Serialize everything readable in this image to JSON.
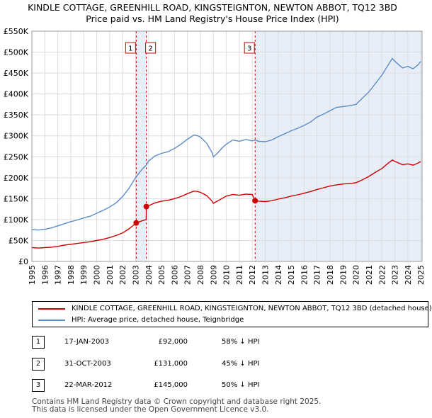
{
  "header": {
    "title_line1": "KINDLE COTTAGE, GREENHILL ROAD, KINGSTEIGNTON, NEWTON ABBOT, TQ12 3BD",
    "title_line2": "Price paid vs. HM Land Registry's House Price Index (HPI)"
  },
  "colors": {
    "red": "#cc0000",
    "blue": "#5b8cc8",
    "shade": "#e8eef8",
    "grid": "#dddddd"
  },
  "chart_data": {
    "type": "line",
    "title": "Price paid vs. HM Land Registry's House Price Index (HPI)",
    "xlim": [
      1995,
      2025.1
    ],
    "ylim": [
      0,
      550000
    ],
    "y_ticks": [
      0,
      50000,
      100000,
      150000,
      200000,
      250000,
      300000,
      350000,
      400000,
      450000,
      500000,
      550000
    ],
    "y_tick_labels": [
      "£0",
      "£50K",
      "£100K",
      "£150K",
      "£200K",
      "£250K",
      "£300K",
      "£350K",
      "£400K",
      "£450K",
      "£500K",
      "£550K"
    ],
    "x_ticks": [
      1995,
      1996,
      1997,
      1998,
      1999,
      2000,
      2001,
      2002,
      2003,
      2004,
      2005,
      2006,
      2007,
      2008,
      2009,
      2010,
      2011,
      2012,
      2013,
      2014,
      2015,
      2016,
      2017,
      2018,
      2019,
      2020,
      2021,
      2022,
      2023,
      2024,
      2025
    ],
    "shaded_ranges": [
      [
        2003.05,
        2003.83
      ],
      [
        2012.22,
        2025.1
      ]
    ],
    "series": [
      {
        "name": "HPI: Average price, detached house, Teignbridge",
        "color": "#5b8cc8",
        "points": [
          [
            1995.0,
            76000
          ],
          [
            1995.5,
            75000
          ],
          [
            1996.0,
            77000
          ],
          [
            1996.5,
            80000
          ],
          [
            1997.0,
            85000
          ],
          [
            1997.5,
            90000
          ],
          [
            1998.0,
            95000
          ],
          [
            1998.5,
            99000
          ],
          [
            1999.0,
            104000
          ],
          [
            1999.5,
            108000
          ],
          [
            2000.0,
            115000
          ],
          [
            2000.5,
            122000
          ],
          [
            2001.0,
            130000
          ],
          [
            2001.5,
            140000
          ],
          [
            2002.0,
            155000
          ],
          [
            2002.5,
            175000
          ],
          [
            2003.0,
            200000
          ],
          [
            2003.5,
            220000
          ],
          [
            2003.83,
            230000
          ],
          [
            2004.0,
            240000
          ],
          [
            2004.5,
            252000
          ],
          [
            2005.0,
            258000
          ],
          [
            2005.5,
            262000
          ],
          [
            2006.0,
            270000
          ],
          [
            2006.5,
            280000
          ],
          [
            2007.0,
            292000
          ],
          [
            2007.5,
            302000
          ],
          [
            2007.8,
            300000
          ],
          [
            2008.0,
            297000
          ],
          [
            2008.5,
            282000
          ],
          [
            2008.9,
            260000
          ],
          [
            2009.0,
            250000
          ],
          [
            2009.3,
            258000
          ],
          [
            2009.7,
            272000
          ],
          [
            2010.0,
            280000
          ],
          [
            2010.5,
            290000
          ],
          [
            2011.0,
            287000
          ],
          [
            2011.5,
            291000
          ],
          [
            2012.0,
            288000
          ],
          [
            2012.22,
            290000
          ],
          [
            2012.5,
            287000
          ],
          [
            2013.0,
            286000
          ],
          [
            2013.5,
            290000
          ],
          [
            2014.0,
            298000
          ],
          [
            2014.5,
            305000
          ],
          [
            2015.0,
            312000
          ],
          [
            2015.5,
            318000
          ],
          [
            2016.0,
            325000
          ],
          [
            2016.5,
            333000
          ],
          [
            2017.0,
            345000
          ],
          [
            2017.5,
            352000
          ],
          [
            2018.0,
            360000
          ],
          [
            2018.5,
            368000
          ],
          [
            2019.0,
            370000
          ],
          [
            2019.5,
            372000
          ],
          [
            2020.0,
            375000
          ],
          [
            2020.5,
            390000
          ],
          [
            2021.0,
            405000
          ],
          [
            2021.5,
            425000
          ],
          [
            2022.0,
            445000
          ],
          [
            2022.5,
            470000
          ],
          [
            2022.8,
            485000
          ],
          [
            2023.0,
            478000
          ],
          [
            2023.3,
            470000
          ],
          [
            2023.6,
            462000
          ],
          [
            2024.0,
            466000
          ],
          [
            2024.4,
            460000
          ],
          [
            2024.8,
            470000
          ],
          [
            2025.0,
            478000
          ]
        ]
      },
      {
        "name": "KINDLE COTTAGE, GREENHILL ROAD, KINGSTEIGNTON, NEWTON ABBOT, TQ12 3BD (detached house)",
        "color": "#cc0000",
        "points": [
          [
            1995.0,
            33000
          ],
          [
            1995.5,
            32000
          ],
          [
            1996.0,
            33000
          ],
          [
            1996.5,
            34000
          ],
          [
            1997.0,
            36000
          ],
          [
            1997.5,
            39000
          ],
          [
            1998.0,
            41000
          ],
          [
            1998.5,
            43000
          ],
          [
            1999.0,
            45000
          ],
          [
            1999.5,
            47000
          ],
          [
            2000.0,
            50000
          ],
          [
            2000.5,
            53000
          ],
          [
            2001.0,
            57000
          ],
          [
            2001.5,
            62000
          ],
          [
            2002.0,
            68000
          ],
          [
            2002.5,
            78000
          ],
          [
            2003.05,
            92000
          ],
          [
            2003.5,
            97000
          ],
          [
            2003.82,
            100000
          ],
          [
            2003.83,
            131000
          ],
          [
            2004.0,
            133000
          ],
          [
            2004.5,
            140000
          ],
          [
            2005.0,
            144000
          ],
          [
            2005.5,
            146000
          ],
          [
            2006.0,
            150000
          ],
          [
            2006.5,
            155000
          ],
          [
            2007.0,
            162000
          ],
          [
            2007.5,
            168000
          ],
          [
            2007.8,
            167000
          ],
          [
            2008.0,
            165000
          ],
          [
            2008.5,
            157000
          ],
          [
            2008.9,
            144000
          ],
          [
            2009.0,
            139000
          ],
          [
            2009.3,
            144000
          ],
          [
            2009.7,
            151000
          ],
          [
            2010.0,
            156000
          ],
          [
            2010.5,
            160000
          ],
          [
            2011.0,
            158000
          ],
          [
            2011.5,
            161000
          ],
          [
            2012.0,
            160000
          ],
          [
            2012.22,
            145000
          ],
          [
            2012.5,
            144000
          ],
          [
            2013.0,
            143000
          ],
          [
            2013.5,
            145000
          ],
          [
            2014.0,
            149000
          ],
          [
            2014.5,
            152000
          ],
          [
            2015.0,
            156000
          ],
          [
            2015.5,
            159000
          ],
          [
            2016.0,
            163000
          ],
          [
            2016.5,
            167000
          ],
          [
            2017.0,
            172000
          ],
          [
            2017.5,
            176000
          ],
          [
            2018.0,
            180000
          ],
          [
            2018.5,
            183000
          ],
          [
            2019.0,
            185000
          ],
          [
            2019.5,
            186000
          ],
          [
            2020.0,
            188000
          ],
          [
            2020.5,
            195000
          ],
          [
            2021.0,
            203000
          ],
          [
            2021.5,
            213000
          ],
          [
            2022.0,
            222000
          ],
          [
            2022.5,
            235000
          ],
          [
            2022.8,
            242000
          ],
          [
            2023.0,
            239000
          ],
          [
            2023.3,
            235000
          ],
          [
            2023.6,
            231000
          ],
          [
            2024.0,
            233000
          ],
          [
            2024.4,
            230000
          ],
          [
            2024.8,
            235000
          ],
          [
            2025.0,
            239000
          ]
        ]
      }
    ],
    "sales": [
      {
        "label": "1",
        "x": 2003.05,
        "y": 92000
      },
      {
        "label": "2",
        "x": 2003.83,
        "y": 131000
      },
      {
        "label": "3",
        "x": 2012.22,
        "y": 145000
      }
    ],
    "marker_boxes": [
      {
        "label": "1",
        "x": 2003.05,
        "anchor": "right"
      },
      {
        "label": "2",
        "x": 2003.83,
        "anchor": "left"
      },
      {
        "label": "3",
        "x": 2012.22,
        "anchor": "right"
      }
    ]
  },
  "legend": {
    "red_label": "KINDLE COTTAGE, GREENHILL ROAD, KINGSTEIGNTON, NEWTON ABBOT, TQ12 3BD (detached house)",
    "blue_label": "HPI: Average price, detached house, Teignbridge"
  },
  "transactions": [
    {
      "num": "1",
      "date": "17-JAN-2003",
      "price": "£92,000",
      "pct": "58% ↓ HPI"
    },
    {
      "num": "2",
      "date": "31-OCT-2003",
      "price": "£131,000",
      "pct": "45% ↓ HPI"
    },
    {
      "num": "3",
      "date": "22-MAR-2012",
      "price": "£145,000",
      "pct": "50% ↓ HPI"
    }
  ],
  "footer": {
    "line1": "Contains HM Land Registry data © Crown copyright and database right 2025.",
    "line2": "This data is licensed under the Open Government Licence v3.0."
  }
}
